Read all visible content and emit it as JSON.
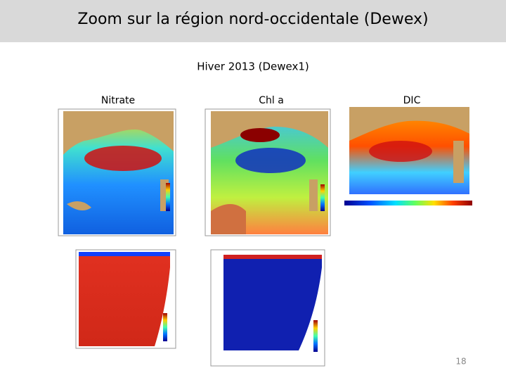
{
  "header": {
    "title": "Zoom sur la région nord-occidentale (Dewex)"
  },
  "subtitle": "Hiver 2013 (Dewex1)",
  "panels": [
    {
      "label": "Nitrate"
    },
    {
      "label": "Chl a"
    },
    {
      "label": "DIC"
    }
  ],
  "footer": {
    "page_number": "18"
  }
}
